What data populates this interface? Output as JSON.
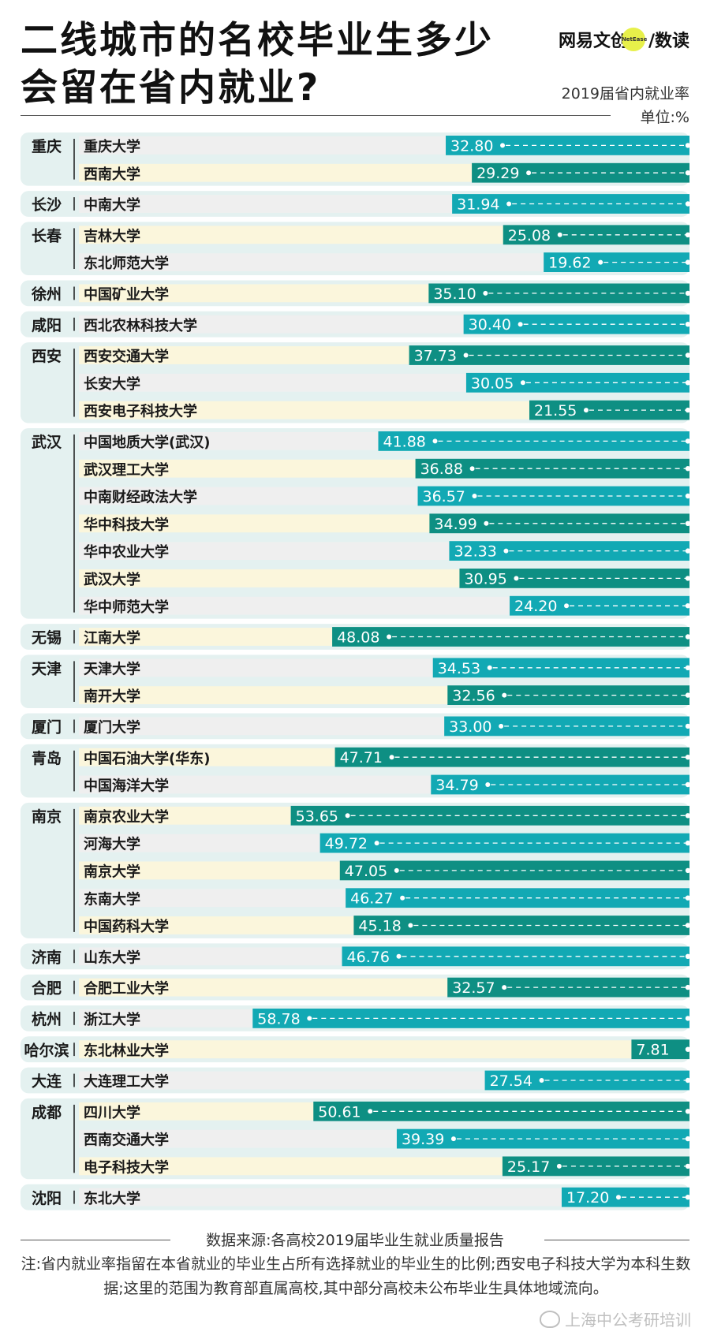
{
  "header": {
    "title_line1": "二线城市的名校毕业生多少",
    "title_line2": "会留在省内就业?",
    "brand_left": "网易文创",
    "brand_dot": "NetEase",
    "brand_right": "/数读",
    "subtitle": "2019届省内就业率",
    "unit": "单位:%"
  },
  "chart_data": {
    "type": "bar",
    "title": "二线城市的名校毕业生多少会留在省内就业?",
    "ylabel": "2019届省内就业率",
    "unit": "%",
    "xlim": [
      0,
      100
    ],
    "colors": {
      "teal_dark": "#0e8f83",
      "teal_light": "#12a9b4",
      "stripe_yellow": "#fbf6dc",
      "stripe_grey": "#efefef",
      "group_bg": "#e4f1f0"
    },
    "groups": [
      {
        "city": "重庆",
        "schools": [
          {
            "name": "重庆大学",
            "value": 32.8
          },
          {
            "name": "西南大学",
            "value": 29.29
          }
        ]
      },
      {
        "city": "长沙",
        "schools": [
          {
            "name": "中南大学",
            "value": 31.94
          }
        ]
      },
      {
        "city": "长春",
        "schools": [
          {
            "name": "吉林大学",
            "value": 25.08
          },
          {
            "name": "东北师范大学",
            "value": 19.62
          }
        ]
      },
      {
        "city": "徐州",
        "schools": [
          {
            "name": "中国矿业大学",
            "value": 35.1
          }
        ]
      },
      {
        "city": "咸阳",
        "schools": [
          {
            "name": "西北农林科技大学",
            "value": 30.4
          }
        ]
      },
      {
        "city": "西安",
        "schools": [
          {
            "name": "西安交通大学",
            "value": 37.73
          },
          {
            "name": "长安大学",
            "value": 30.05
          },
          {
            "name": "西安电子科技大学",
            "value": 21.55
          }
        ]
      },
      {
        "city": "武汉",
        "schools": [
          {
            "name": "中国地质大学(武汉)",
            "value": 41.88
          },
          {
            "name": "武汉理工大学",
            "value": 36.88
          },
          {
            "name": "中南财经政法大学",
            "value": 36.57
          },
          {
            "name": "华中科技大学",
            "value": 34.99
          },
          {
            "name": "华中农业大学",
            "value": 32.33
          },
          {
            "name": "武汉大学",
            "value": 30.95
          },
          {
            "name": "华中师范大学",
            "value": 24.2
          }
        ]
      },
      {
        "city": "无锡",
        "schools": [
          {
            "name": "江南大学",
            "value": 48.08
          }
        ]
      },
      {
        "city": "天津",
        "schools": [
          {
            "name": "天津大学",
            "value": 34.53
          },
          {
            "name": "南开大学",
            "value": 32.56
          }
        ]
      },
      {
        "city": "厦门",
        "schools": [
          {
            "name": "厦门大学",
            "value": 33.0
          }
        ]
      },
      {
        "city": "青岛",
        "schools": [
          {
            "name": "中国石油大学(华东)",
            "value": 47.71
          },
          {
            "name": "中国海洋大学",
            "value": 34.79
          }
        ]
      },
      {
        "city": "南京",
        "schools": [
          {
            "name": "南京农业大学",
            "value": 53.65
          },
          {
            "name": "河海大学",
            "value": 49.72
          },
          {
            "name": "南京大学",
            "value": 47.05
          },
          {
            "name": "东南大学",
            "value": 46.27
          },
          {
            "name": "中国药科大学",
            "value": 45.18
          }
        ]
      },
      {
        "city": "济南",
        "schools": [
          {
            "name": "山东大学",
            "value": 46.76
          }
        ]
      },
      {
        "city": "合肥",
        "schools": [
          {
            "name": "合肥工业大学",
            "value": 32.57
          }
        ]
      },
      {
        "city": "杭州",
        "schools": [
          {
            "name": "浙江大学",
            "value": 58.78
          }
        ]
      },
      {
        "city": "哈尔滨",
        "schools": [
          {
            "name": "东北林业大学",
            "value": 7.81
          }
        ]
      },
      {
        "city": "大连",
        "schools": [
          {
            "name": "大连理工大学",
            "value": 27.54
          }
        ]
      },
      {
        "city": "成都",
        "schools": [
          {
            "name": "四川大学",
            "value": 50.61
          },
          {
            "name": "西南交通大学",
            "value": 39.39
          },
          {
            "name": "电子科技大学",
            "value": 25.17
          }
        ]
      },
      {
        "city": "沈阳",
        "schools": [
          {
            "name": "东北大学",
            "value": 17.2
          }
        ]
      }
    ]
  },
  "footer": {
    "source": "数据来源:各高校2019届毕业生就业质量报告",
    "note": "注:省内就业率指留在本省就业的毕业生占所有选择就业的毕业生的比例;西安电子科技大学为本科生数据;这里的范围为教育部直属高校,其中部分高校未公布毕业生具体地域流向。"
  },
  "watermark": "上海中公考研培训"
}
